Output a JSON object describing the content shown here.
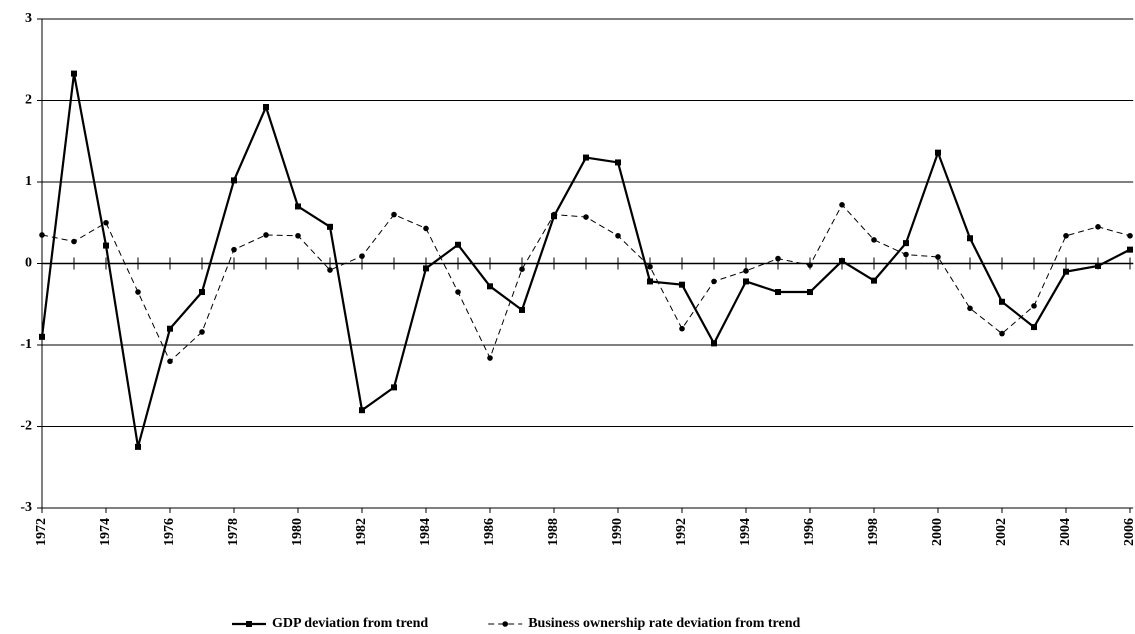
{
  "chart_data": {
    "type": "line",
    "x": [
      1972,
      1973,
      1974,
      1975,
      1976,
      1977,
      1978,
      1979,
      1980,
      1981,
      1982,
      1983,
      1984,
      1985,
      1986,
      1987,
      1988,
      1989,
      1990,
      1991,
      1992,
      1993,
      1994,
      1995,
      1996,
      1997,
      1998,
      1999,
      2000,
      2001,
      2002,
      2003,
      2004,
      2005,
      2006
    ],
    "series": [
      {
        "name": "GDP deviation from trend",
        "color": "#000000",
        "dash": "solid",
        "marker": "square",
        "values": [
          -0.9,
          2.33,
          0.22,
          -2.25,
          -0.8,
          -0.35,
          1.02,
          1.92,
          0.7,
          0.45,
          -1.8,
          -1.52,
          -0.06,
          0.23,
          -0.28,
          -0.57,
          0.58,
          1.3,
          1.24,
          -0.22,
          -0.26,
          -0.98,
          -0.22,
          -0.35,
          -0.35,
          0.03,
          -0.21,
          0.25,
          1.36,
          0.31,
          -0.47,
          -0.78,
          -0.1,
          -0.03,
          0.17
        ]
      },
      {
        "name": "Business ownership rate deviation from trend",
        "color": "#000000",
        "dash": "dashed",
        "marker": "circle",
        "values": [
          0.35,
          0.27,
          0.5,
          -0.35,
          -1.2,
          -0.84,
          0.17,
          0.35,
          0.34,
          -0.08,
          0.09,
          0.6,
          0.43,
          -0.35,
          -1.16,
          -0.07,
          0.6,
          0.57,
          0.34,
          -0.04,
          -0.8,
          -0.22,
          -0.09,
          0.06,
          -0.02,
          0.72,
          0.29,
          0.11,
          0.08,
          -0.55,
          -0.86,
          -0.52,
          0.34,
          0.45,
          0.34
        ]
      }
    ],
    "xlim": [
      1972,
      2006.1
    ],
    "xticks": [
      1972,
      1974,
      1976,
      1978,
      1980,
      1982,
      1984,
      1986,
      1988,
      1990,
      1992,
      1994,
      1996,
      1998,
      2000,
      2002,
      2004,
      2006
    ],
    "ylim": [
      -3,
      3
    ],
    "yticks": [
      -3,
      -2,
      -1,
      0,
      1,
      2,
      3
    ],
    "grid": true,
    "legend": "bottom"
  }
}
